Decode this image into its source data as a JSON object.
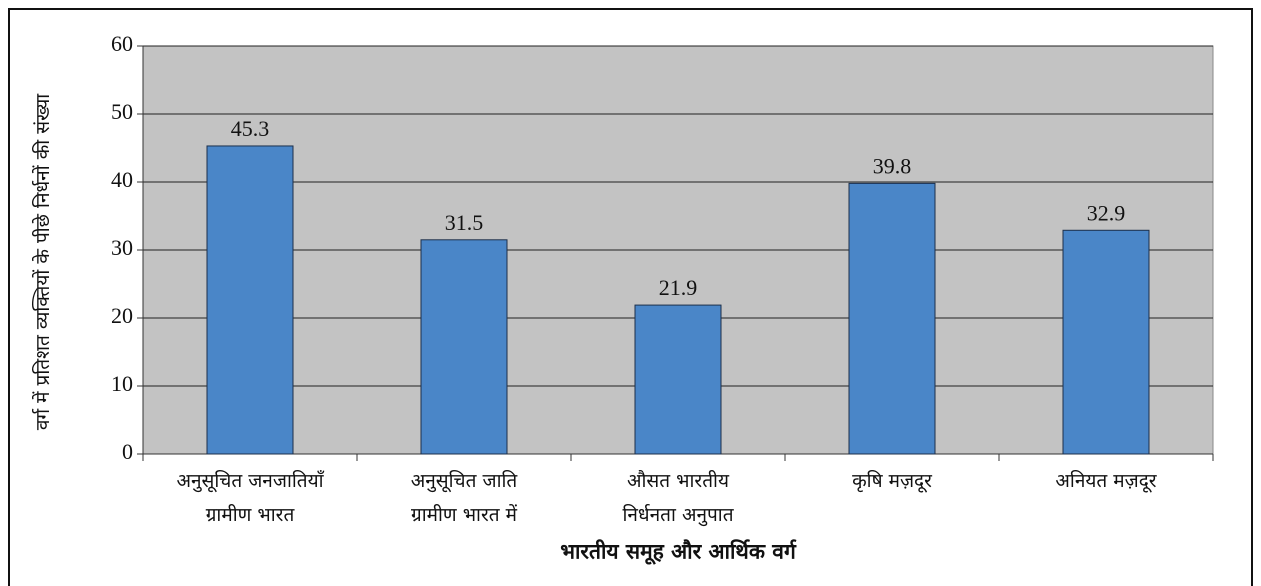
{
  "chart_data": {
    "type": "bar",
    "y_label": "वर्ग में प्रतिशत व्यक्तियों के पीछे निर्धनों की संख्या",
    "x_label": "भारतीय समूह और आर्थिक वर्ग",
    "categories": [
      [
        "अनुसूचित जनजातियाँ",
        "ग्रामीण भारत"
      ],
      [
        "अनुसूचित जाति",
        "ग्रामीण भारत में"
      ],
      [
        "औसत भारतीय",
        "निर्धनता अनुपात"
      ],
      [
        "कृषि मज़दूर"
      ],
      [
        "अनियत मज़दूर"
      ]
    ],
    "values": [
      45.3,
      31.5,
      21.9,
      39.8,
      32.9
    ],
    "color": "#4a86c8",
    "ylim": [
      0,
      60
    ],
    "yticks": [
      0,
      10,
      20,
      30,
      40,
      50,
      60
    ],
    "grid": true
  }
}
